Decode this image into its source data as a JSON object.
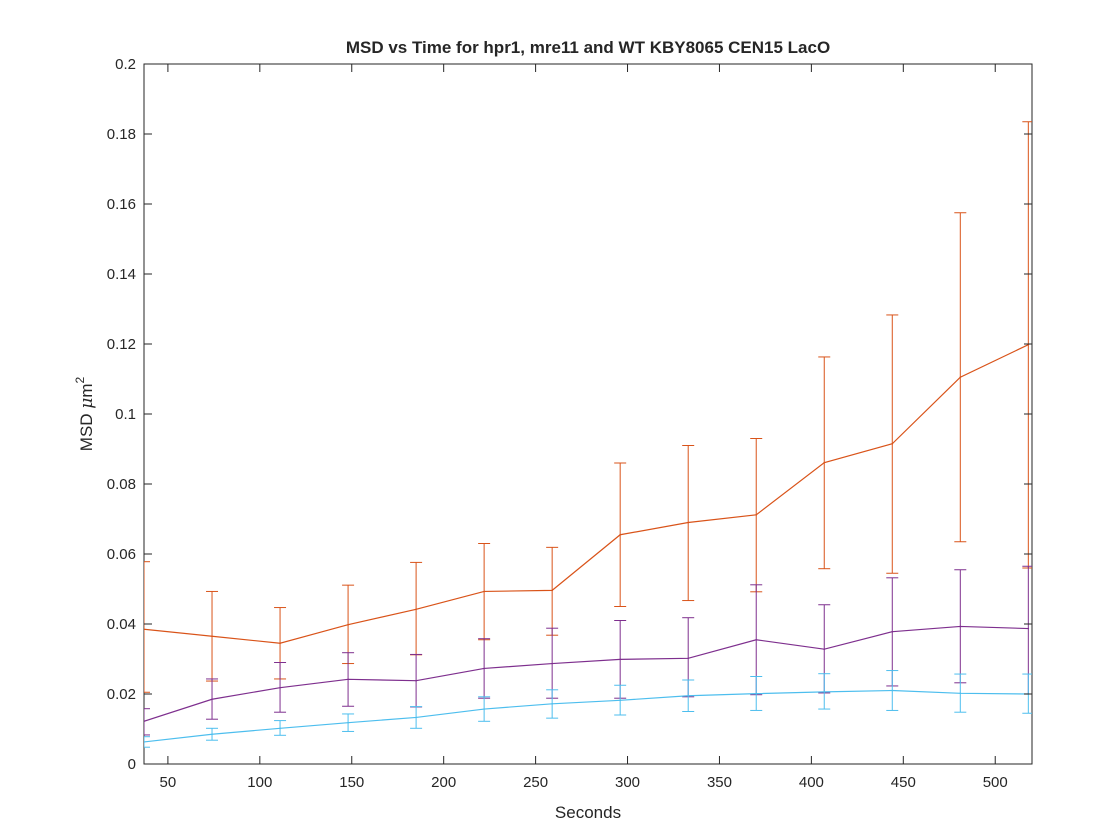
{
  "chart_data": {
    "type": "line",
    "title": "MSD vs Time for hpr1, mre11 and WT KBY8065 CEN15 LacO",
    "xlabel": "Seconds",
    "ylabel_main": "MSD ",
    "ylabel_mu": "μ",
    "ylabel_unit": "m",
    "ylabel_exp": "2",
    "xlim": [
      37,
      520
    ],
    "ylim": [
      0,
      0.2
    ],
    "xticks": [
      50,
      100,
      150,
      200,
      250,
      300,
      350,
      400,
      450,
      500
    ],
    "yticks": [
      0,
      0.02,
      0.04,
      0.06,
      0.08,
      0.1,
      0.12,
      0.14,
      0.16,
      0.18,
      0.2
    ],
    "x": [
      37,
      74,
      111,
      148,
      185,
      222,
      259,
      296,
      333,
      370,
      407,
      444,
      481,
      518
    ],
    "series": [
      {
        "color": "#D95319",
        "values": [
          0.0385,
          0.0365,
          0.0345,
          0.0398,
          0.0442,
          0.0493,
          0.0496,
          0.0655,
          0.069,
          0.0712,
          0.0861,
          0.0915,
          0.1105,
          0.1198
        ],
        "err_low": [
          0.0205,
          0.0237,
          0.0243,
          0.0287,
          0.0312,
          0.0355,
          0.0368,
          0.045,
          0.0467,
          0.0492,
          0.0558,
          0.0545,
          0.0635,
          0.056
        ],
        "err_high": [
          0.0578,
          0.0493,
          0.0447,
          0.0511,
          0.0576,
          0.063,
          0.0619,
          0.086,
          0.091,
          0.093,
          0.1163,
          0.1283,
          0.1575,
          0.1835
        ]
      },
      {
        "color": "#7E2F8E",
        "values": [
          0.0122,
          0.0185,
          0.0218,
          0.0242,
          0.0238,
          0.0273,
          0.0287,
          0.0299,
          0.0302,
          0.0355,
          0.0328,
          0.0378,
          0.0393,
          0.0387
        ],
        "err_low": [
          0.0083,
          0.0128,
          0.0148,
          0.0165,
          0.0163,
          0.0188,
          0.0188,
          0.0188,
          0.0192,
          0.0198,
          0.0203,
          0.0223,
          0.0232,
          0.02
        ],
        "err_high": [
          0.0158,
          0.0243,
          0.029,
          0.0318,
          0.0313,
          0.0358,
          0.0388,
          0.041,
          0.0418,
          0.0512,
          0.0455,
          0.0532,
          0.0555,
          0.0565
        ]
      },
      {
        "color": "#4DBEEE",
        "values": [
          0.0063,
          0.0085,
          0.0102,
          0.0118,
          0.0133,
          0.0157,
          0.0172,
          0.0182,
          0.0195,
          0.0201,
          0.0206,
          0.021,
          0.0202,
          0.02
        ],
        "err_low": [
          0.0048,
          0.0068,
          0.0082,
          0.0093,
          0.0102,
          0.0122,
          0.0131,
          0.014,
          0.015,
          0.0153,
          0.0157,
          0.0153,
          0.0148,
          0.0145
        ],
        "err_high": [
          0.0078,
          0.0102,
          0.0124,
          0.0143,
          0.0164,
          0.0192,
          0.0212,
          0.0225,
          0.024,
          0.025,
          0.0258,
          0.0267,
          0.0257,
          0.0257
        ]
      }
    ],
    "grid": false,
    "legend": "none"
  }
}
